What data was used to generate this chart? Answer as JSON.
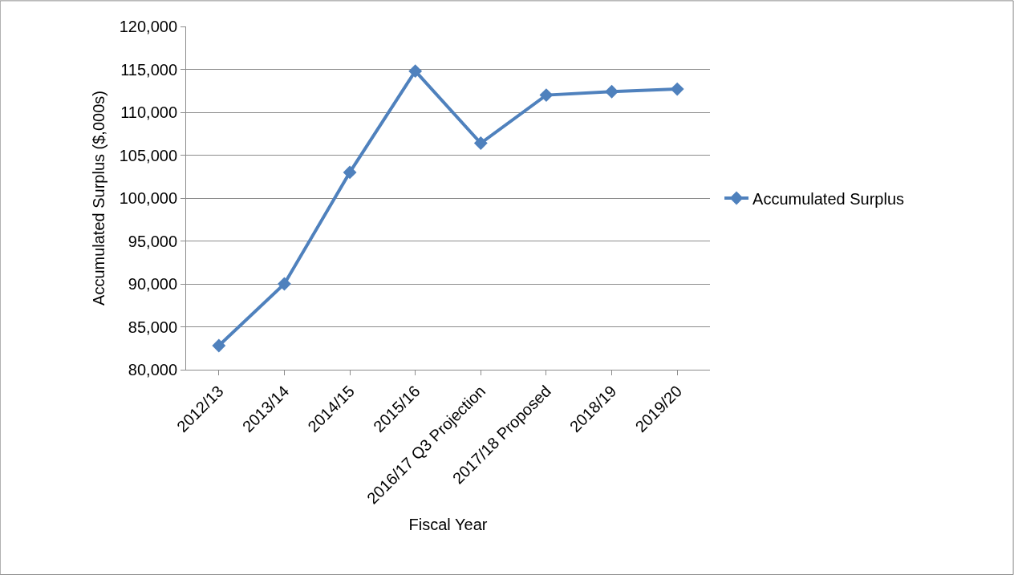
{
  "chart_data": {
    "type": "line",
    "xlabel": "Fiscal Year",
    "ylabel": "Accumulated Surplus ($,000s)",
    "categories": [
      "2012/13",
      "2013/14",
      "2014/15",
      "2015/16",
      "2016/17 Q3 Projection",
      "2017/18 Proposed",
      "2018/19",
      "2019/20"
    ],
    "series": [
      {
        "name": "Accumulated Surplus",
        "color": "#4f81bd",
        "values": [
          82800,
          90000,
          103000,
          114800,
          106400,
          112000,
          112400,
          112700
        ]
      }
    ],
    "ylim": [
      80000,
      120000
    ],
    "yticks": [
      {
        "value": 80000,
        "label": "80,000"
      },
      {
        "value": 85000,
        "label": "85,000"
      },
      {
        "value": 90000,
        "label": "90,000"
      },
      {
        "value": 95000,
        "label": "95,000"
      },
      {
        "value": 100000,
        "label": "100,000"
      },
      {
        "value": 105000,
        "label": "105,000"
      },
      {
        "value": 110000,
        "label": "110,000"
      },
      {
        "value": 115000,
        "label": "115,000"
      },
      {
        "value": 120000,
        "label": "120,000"
      }
    ],
    "grid": "y",
    "legend": "right",
    "marker": "diamond",
    "line_style": "solid"
  }
}
